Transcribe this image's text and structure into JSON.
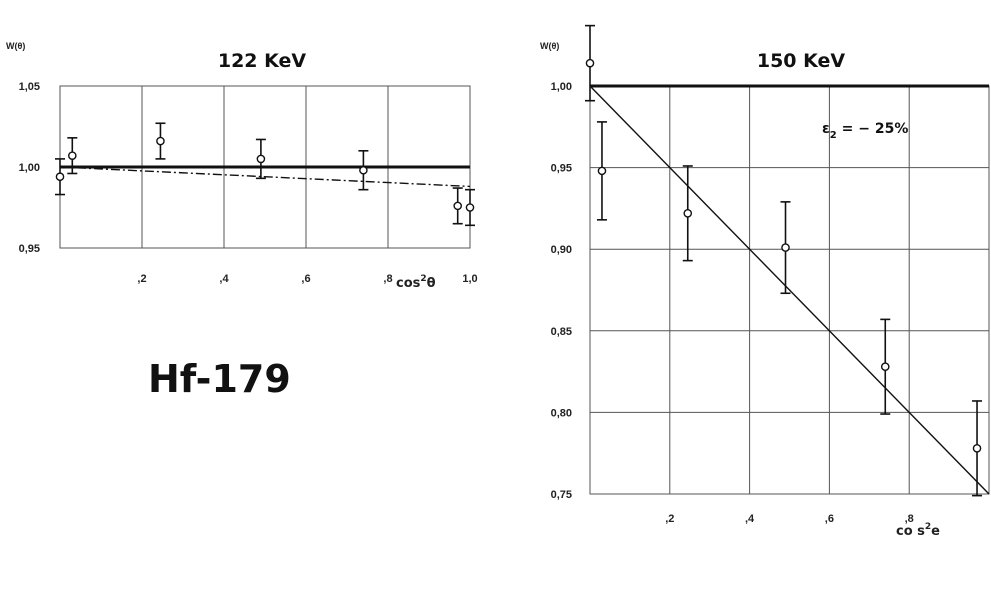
{
  "figure_label": "Hf-179",
  "chart_data": [
    {
      "type": "scatter",
      "title": "122 KeV",
      "ylabel": "W(θ)",
      "xlabel_base": "cos",
      "xlabel_sup": "2",
      "xlabel_end": "θ",
      "xlim": [
        0,
        1.0
      ],
      "ylim": [
        0.95,
        1.05
      ],
      "x_ticks": [
        0.2,
        0.4,
        0.6,
        0.8,
        1.0
      ],
      "x_tick_labels": [
        ",2",
        ",4",
        ",6",
        ",8",
        "1,0"
      ],
      "y_ticks": [
        0.95,
        1.0,
        1.05
      ],
      "y_tick_labels": [
        "0,95",
        "1,00",
        "1,05"
      ],
      "grid": true,
      "reference_line": {
        "y": 1.0,
        "style": "thick-solid"
      },
      "fit_line": {
        "x": [
          0,
          1.0
        ],
        "y": [
          1.0,
          0.988
        ],
        "style": "dash-dot"
      },
      "series": [
        {
          "x": [
            0.0,
            0.03,
            0.245,
            0.49,
            0.74,
            0.97,
            1.0
          ],
          "y": [
            0.994,
            1.007,
            1.016,
            1.005,
            0.998,
            0.976,
            0.975
          ],
          "err": [
            0.011,
            0.011,
            0.011,
            0.012,
            0.012,
            0.011,
            0.011
          ]
        }
      ]
    },
    {
      "type": "scatter",
      "title": "150 KeV",
      "ylabel": "W(θ)",
      "xlabel_base": "co s",
      "xlabel_sup": "2",
      "xlabel_end": "e",
      "xlim": [
        0,
        1.0
      ],
      "ylim": [
        0.75,
        1.0
      ],
      "x_ticks": [
        0.2,
        0.4,
        0.6,
        0.8
      ],
      "x_tick_labels": [
        ",2",
        ",4",
        ",6",
        ",8"
      ],
      "y_ticks": [
        0.75,
        0.8,
        0.85,
        0.9,
        0.95,
        1.0
      ],
      "y_tick_labels": [
        "0,75",
        "0,80",
        "0,85",
        "0,90",
        "0,95",
        "1,00"
      ],
      "grid": true,
      "reference_line": {
        "y": 1.0,
        "style": "thick-solid"
      },
      "fit_line": {
        "x": [
          0,
          1.0
        ],
        "y": [
          1.0,
          0.75
        ],
        "style": "solid"
      },
      "annotation": {
        "base": "ε",
        "sub": "2",
        "rest": " = − 25%"
      },
      "series": [
        {
          "x": [
            0.0,
            0.03,
            0.245,
            0.49,
            0.74,
            0.97
          ],
          "y": [
            1.014,
            0.948,
            0.922,
            0.901,
            0.828,
            0.778
          ],
          "err": [
            0.023,
            0.03,
            0.029,
            0.028,
            0.029,
            0.029
          ]
        }
      ]
    }
  ]
}
